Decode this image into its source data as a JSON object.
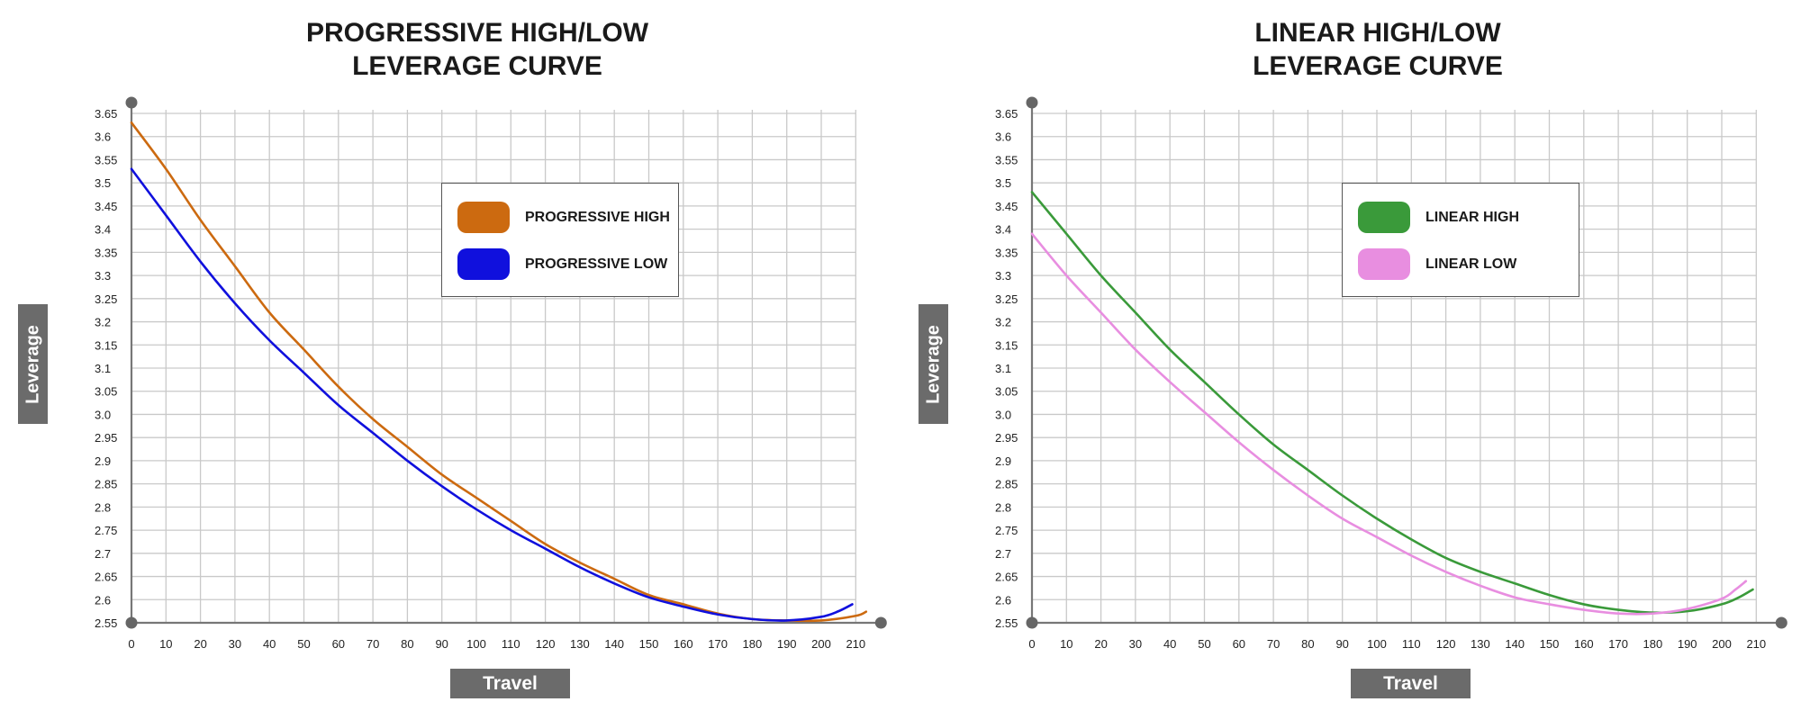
{
  "chart_data": [
    {
      "type": "line",
      "title_lines": [
        "PROGRESSIVE HIGH/LOW",
        "LEVERAGE CURVE"
      ],
      "xlabel": "Travel",
      "ylabel": "Leverage",
      "xlim": [
        0,
        210
      ],
      "ylim": [
        2.55,
        3.65
      ],
      "x_ticks": [
        "0",
        "10",
        "20",
        "30",
        "40",
        "50",
        "60",
        "70",
        "80",
        "90",
        "100",
        "110",
        "120",
        "130",
        "140",
        "150",
        "160",
        "170",
        "180",
        "190",
        "200",
        "210"
      ],
      "y_ticks": [
        "3.65",
        "3.6",
        "3.55",
        "3.5",
        "3.45",
        "3.4",
        "3.35",
        "3.3",
        "3.25",
        "3.2",
        "3.15",
        "3.1",
        "3.05",
        "3.0",
        "2.95",
        "2.9",
        "2.85",
        "2.8",
        "2.75",
        "2.7",
        "2.65",
        "2.6",
        "2.55"
      ],
      "grid": true,
      "legend_position": "top-right",
      "series": [
        {
          "name": "PROGRESSIVE HIGH",
          "color": "#cc6a10",
          "x": [
            0,
            10,
            20,
            30,
            40,
            50,
            60,
            70,
            80,
            90,
            100,
            110,
            120,
            130,
            140,
            150,
            160,
            170,
            180,
            190,
            200,
            210,
            213
          ],
          "y": [
            3.63,
            3.53,
            3.42,
            3.32,
            3.22,
            3.14,
            3.06,
            2.99,
            2.93,
            2.87,
            2.82,
            2.77,
            2.72,
            2.68,
            2.645,
            2.61,
            2.59,
            2.57,
            2.558,
            2.555,
            2.555,
            2.565,
            2.574
          ]
        },
        {
          "name": "PROGRESSIVE LOW",
          "color": "#1010dd",
          "x": [
            0,
            10,
            20,
            30,
            40,
            50,
            60,
            70,
            80,
            90,
            100,
            110,
            120,
            130,
            140,
            150,
            160,
            170,
            180,
            190,
            200,
            205,
            209
          ],
          "y": [
            3.53,
            3.43,
            3.33,
            3.24,
            3.16,
            3.09,
            3.02,
            2.96,
            2.9,
            2.845,
            2.795,
            2.75,
            2.71,
            2.67,
            2.635,
            2.605,
            2.585,
            2.568,
            2.558,
            2.555,
            2.563,
            2.575,
            2.59
          ]
        }
      ]
    },
    {
      "type": "line",
      "title_lines": [
        "LINEAR HIGH/LOW",
        "LEVERAGE CURVE"
      ],
      "xlabel": "Travel",
      "ylabel": "Leverage",
      "xlim": [
        0,
        210
      ],
      "ylim": [
        2.55,
        3.65
      ],
      "x_ticks": [
        "0",
        "10",
        "20",
        "30",
        "40",
        "50",
        "60",
        "70",
        "80",
        "90",
        "100",
        "110",
        "120",
        "130",
        "140",
        "150",
        "160",
        "170",
        "180",
        "190",
        "200",
        "210"
      ],
      "y_ticks": [
        "3.65",
        "3.6",
        "3.55",
        "3.5",
        "3.45",
        "3.4",
        "3.35",
        "3.3",
        "3.25",
        "3.2",
        "3.15",
        "3.1",
        "3.05",
        "3.0",
        "2.95",
        "2.9",
        "2.85",
        "2.8",
        "2.75",
        "2.7",
        "2.65",
        "2.6",
        "2.55"
      ],
      "grid": true,
      "legend_position": "top-right",
      "series": [
        {
          "name": "LINEAR HIGH",
          "color": "#3a9a3a",
          "x": [
            0,
            10,
            20,
            30,
            40,
            50,
            60,
            70,
            80,
            90,
            100,
            110,
            120,
            130,
            140,
            150,
            160,
            170,
            180,
            190,
            200,
            205,
            209
          ],
          "y": [
            3.48,
            3.39,
            3.3,
            3.22,
            3.14,
            3.07,
            3.0,
            2.935,
            2.88,
            2.825,
            2.775,
            2.73,
            2.69,
            2.66,
            2.635,
            2.61,
            2.59,
            2.578,
            2.572,
            2.575,
            2.59,
            2.605,
            2.622
          ]
        },
        {
          "name": "LINEAR LOW",
          "color": "#e88ee0",
          "x": [
            0,
            10,
            20,
            30,
            40,
            50,
            60,
            70,
            80,
            90,
            100,
            110,
            120,
            130,
            140,
            150,
            160,
            170,
            180,
            190,
            200,
            204,
            207
          ],
          "y": [
            3.39,
            3.3,
            3.22,
            3.14,
            3.07,
            3.005,
            2.94,
            2.88,
            2.825,
            2.775,
            2.735,
            2.695,
            2.66,
            2.63,
            2.605,
            2.59,
            2.578,
            2.57,
            2.57,
            2.58,
            2.602,
            2.622,
            2.64
          ]
        }
      ]
    }
  ]
}
